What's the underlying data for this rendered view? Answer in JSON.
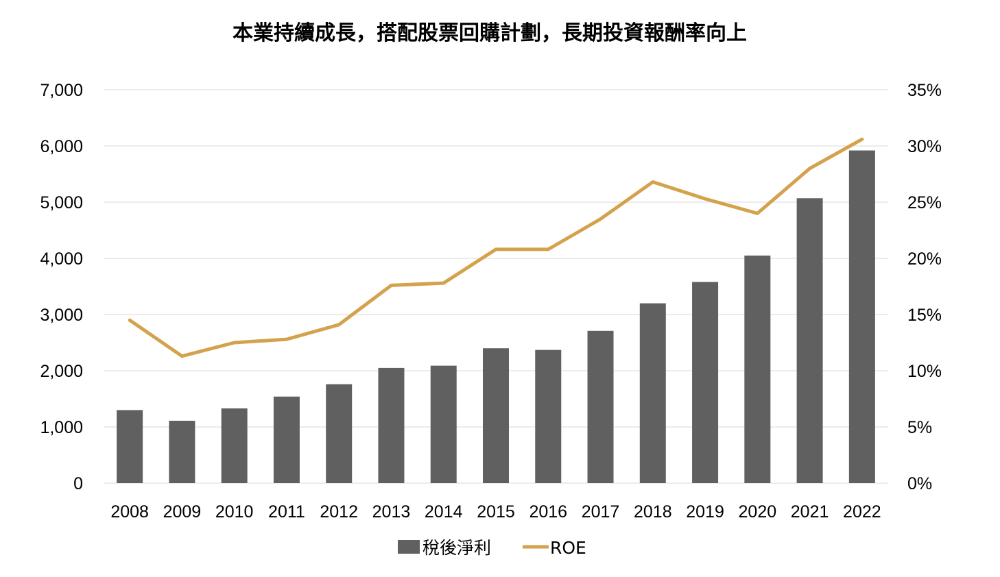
{
  "chart_data": {
    "type": "bar",
    "title": "本業持續成長，搭配股票回購計劃，長期投資報酬率向上",
    "categories": [
      "2008",
      "2009",
      "2010",
      "2011",
      "2012",
      "2013",
      "2014",
      "2015",
      "2016",
      "2017",
      "2018",
      "2019",
      "2020",
      "2021",
      "2022"
    ],
    "series": [
      {
        "name": "稅後淨利",
        "type": "bar",
        "axis": "left",
        "color": "#606060",
        "values": [
          1300,
          1110,
          1330,
          1540,
          1760,
          2050,
          2090,
          2400,
          2370,
          2710,
          3200,
          3580,
          4050,
          5070,
          5920
        ]
      },
      {
        "name": "ROE",
        "type": "line",
        "axis": "right",
        "color": "#D4A24C",
        "values": [
          14.5,
          11.3,
          12.5,
          12.8,
          14.1,
          17.6,
          17.8,
          20.8,
          20.8,
          23.5,
          26.8,
          25.3,
          24.0,
          28.0,
          30.6
        ]
      }
    ],
    "y_left": {
      "min": 0,
      "max": 7000,
      "ticks": [
        0,
        1000,
        2000,
        3000,
        4000,
        5000,
        6000,
        7000
      ],
      "tick_labels": [
        "0",
        "1,000",
        "2,000",
        "3,000",
        "4,000",
        "5,000",
        "6,000",
        "7,000"
      ]
    },
    "y_right": {
      "min": 0,
      "max": 35,
      "ticks": [
        0,
        5,
        10,
        15,
        20,
        25,
        30,
        35
      ],
      "tick_labels": [
        "0%",
        "5%",
        "10%",
        "15%",
        "20%",
        "25%",
        "30%",
        "35%"
      ]
    },
    "grid": true,
    "legend_position": "bottom"
  }
}
